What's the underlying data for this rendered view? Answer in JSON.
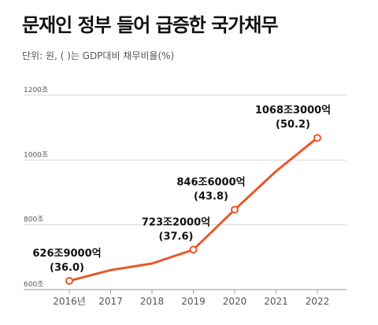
{
  "chart_data": {
    "type": "line",
    "title": "문재인 정부 들어 급증한 국가채무",
    "subtitle": "단위: 원, ( )는 GDP대비 채무비율(%)",
    "categories": [
      "2016년",
      "2017",
      "2018",
      "2019",
      "2020",
      "2021",
      "2022"
    ],
    "series": [
      {
        "values": [
          626.9,
          660.2,
          680.5,
          723.2,
          846.6,
          965.3,
          1068.3
        ]
      }
    ],
    "y_ticks": [
      {
        "value": 600,
        "label": "600조"
      },
      {
        "value": 800,
        "label": "800조"
      },
      {
        "value": 1000,
        "label": "1000조"
      },
      {
        "value": 1200,
        "label": "1200조"
      }
    ],
    "ylim": [
      600,
      1200
    ],
    "annotations": [
      {
        "index": 0,
        "value_text": "626조9000억",
        "ratio_text": "(36.0)"
      },
      {
        "index": 3,
        "value_text": "723조2000억",
        "ratio_text": "(37.6)"
      },
      {
        "index": 4,
        "value_text": "846조6000억",
        "ratio_text": "(43.8)"
      },
      {
        "index": 6,
        "value_text": "1068조3000억",
        "ratio_text": "(50.2)"
      }
    ],
    "line_color": "#e8582a",
    "grid": true
  }
}
